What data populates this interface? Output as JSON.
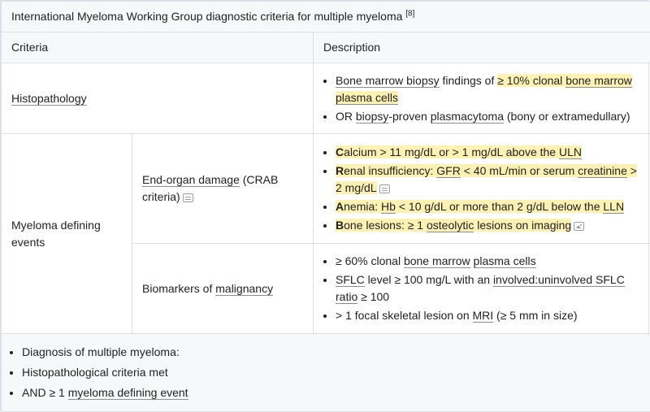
{
  "caption": {
    "title": "International Myeloma Working Group diagnostic criteria for multiple myeloma",
    "ref": "[8]"
  },
  "headers": {
    "criteria": "Criteria",
    "description": "Description"
  },
  "histopathology": {
    "label": "Histopathology",
    "item1": {
      "a": "Bone marrow biopsy",
      "b": " findings of ",
      "c": "≥ 10% clonal ",
      "d": "bone marrow",
      "e": " ",
      "f": "plasma cells"
    },
    "item2": {
      "a": "OR ",
      "b": "biopsy",
      "c": "-proven ",
      "d": "plasmacytoma",
      "e": " (bony or extramedullary)"
    }
  },
  "myeloma_events": {
    "label": "Myeloma defining events",
    "crab": {
      "label_a": "End-organ damage",
      "label_b": " (CRAB criteria)",
      "calcium": {
        "lead": "C",
        "a": "alcium > 11 mg/dL or > 1 mg/dL above the ",
        "b": "ULN"
      },
      "renal": {
        "lead": "R",
        "a": "enal insufficiency: ",
        "b": "GFR",
        "c": " < 40 mL/min or serum ",
        "d": "creatinine",
        "e": " > 2 mg/dL"
      },
      "anemia": {
        "lead": "A",
        "a": "nemia: ",
        "b": "Hb",
        "c": " < 10 g/dL or more than 2 g/dL below the ",
        "d": "LLN"
      },
      "bone": {
        "lead": "B",
        "a": "one lesions: ≥ 1 ",
        "b": "osteolytic",
        "c": " lesions on imaging"
      }
    },
    "biomarkers": {
      "label_a": "Biomarkers of ",
      "label_b": "malignancy",
      "item1": {
        "a": "≥ 60% clonal ",
        "b": "bone marrow",
        "c": " ",
        "d": "plasma cells"
      },
      "item2": {
        "a": "SFLC",
        "b": " level ≥ 100 mg/L with an ",
        "c": "involved:uninvolved SFLC ratio",
        "d": " ≥ 100"
      },
      "item3": {
        "a": "> 1 focal skeletal lesion on ",
        "b": "MRI",
        "c": " (≥ 5 mm in size)"
      }
    }
  },
  "footer": {
    "item1": "Diagnosis of multiple myeloma:",
    "item2": "Histopathological criteria met",
    "item3_a": "AND ≥ 1 ",
    "item3_b": "myeloma defining event"
  },
  "colors": {
    "highlight": "#fdf1b4",
    "border": "#dcdfe3",
    "header_bg": "#f7f8f9"
  },
  "icons": {
    "criteria_icon": "criteria-icon",
    "image_icon": "image-icon"
  }
}
